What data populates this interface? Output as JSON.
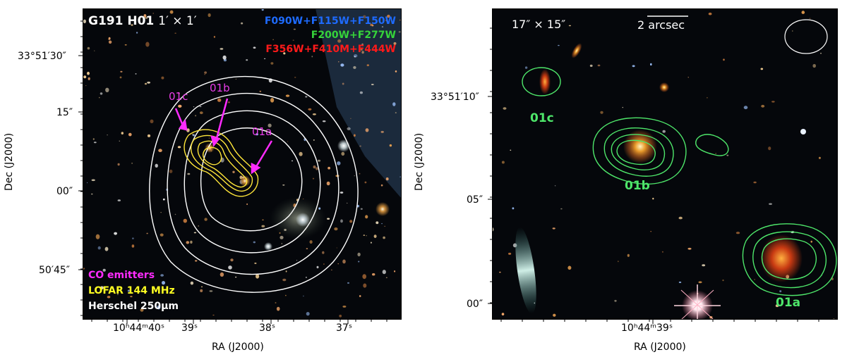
{
  "left": {
    "field_name": "G191 H01",
    "field_size": "1′ × 1′",
    "filters": [
      {
        "text": "F090W+F115W+F150W",
        "color": "#1e6bff"
      },
      {
        "text": "F200W+F277W",
        "color": "#36d43a"
      },
      {
        "text": "F356W+F410M+F444W",
        "color": "#ff1a1a"
      }
    ],
    "legend": [
      {
        "text": "CO emitters",
        "color": "#ff2bff"
      },
      {
        "text": "LOFAR 144 MHz",
        "color": "#ffff22"
      },
      {
        "text": "Herschel 250μm",
        "color": "#ffffff"
      }
    ],
    "labels": {
      "a": "01a",
      "b": "01b",
      "c": "01c",
      "color": "#e83ce8"
    },
    "y_ticks": [
      "33°51′30″",
      "15″",
      "00″",
      "50′45″"
    ],
    "x_ticks": [
      "10ʰ44ᵐ40ˢ",
      "39ˢ",
      "38ˢ",
      "37ˢ"
    ],
    "xlabel": "RA (J2000)",
    "ylabel": "Dec (J2000)"
  },
  "right": {
    "field_size": "17″ × 15″",
    "scalebar_label": "2 arcsec",
    "labels": {
      "a": "01a",
      "b": "01b",
      "c": "01c",
      "color": "#4ee66a"
    },
    "y_ticks": [
      "33°51′10″",
      "05″",
      "00″"
    ],
    "x_ticks": [
      "10ʰ44ᵐ39ˢ"
    ],
    "xlabel": "RA (J2000)",
    "ylabel": "Dec (J2000)"
  },
  "colors": {
    "contour_white": "#ffffff",
    "contour_yellow": "#ffe63a",
    "contour_green": "#4ee66a",
    "arrow": "#ff2bff"
  }
}
